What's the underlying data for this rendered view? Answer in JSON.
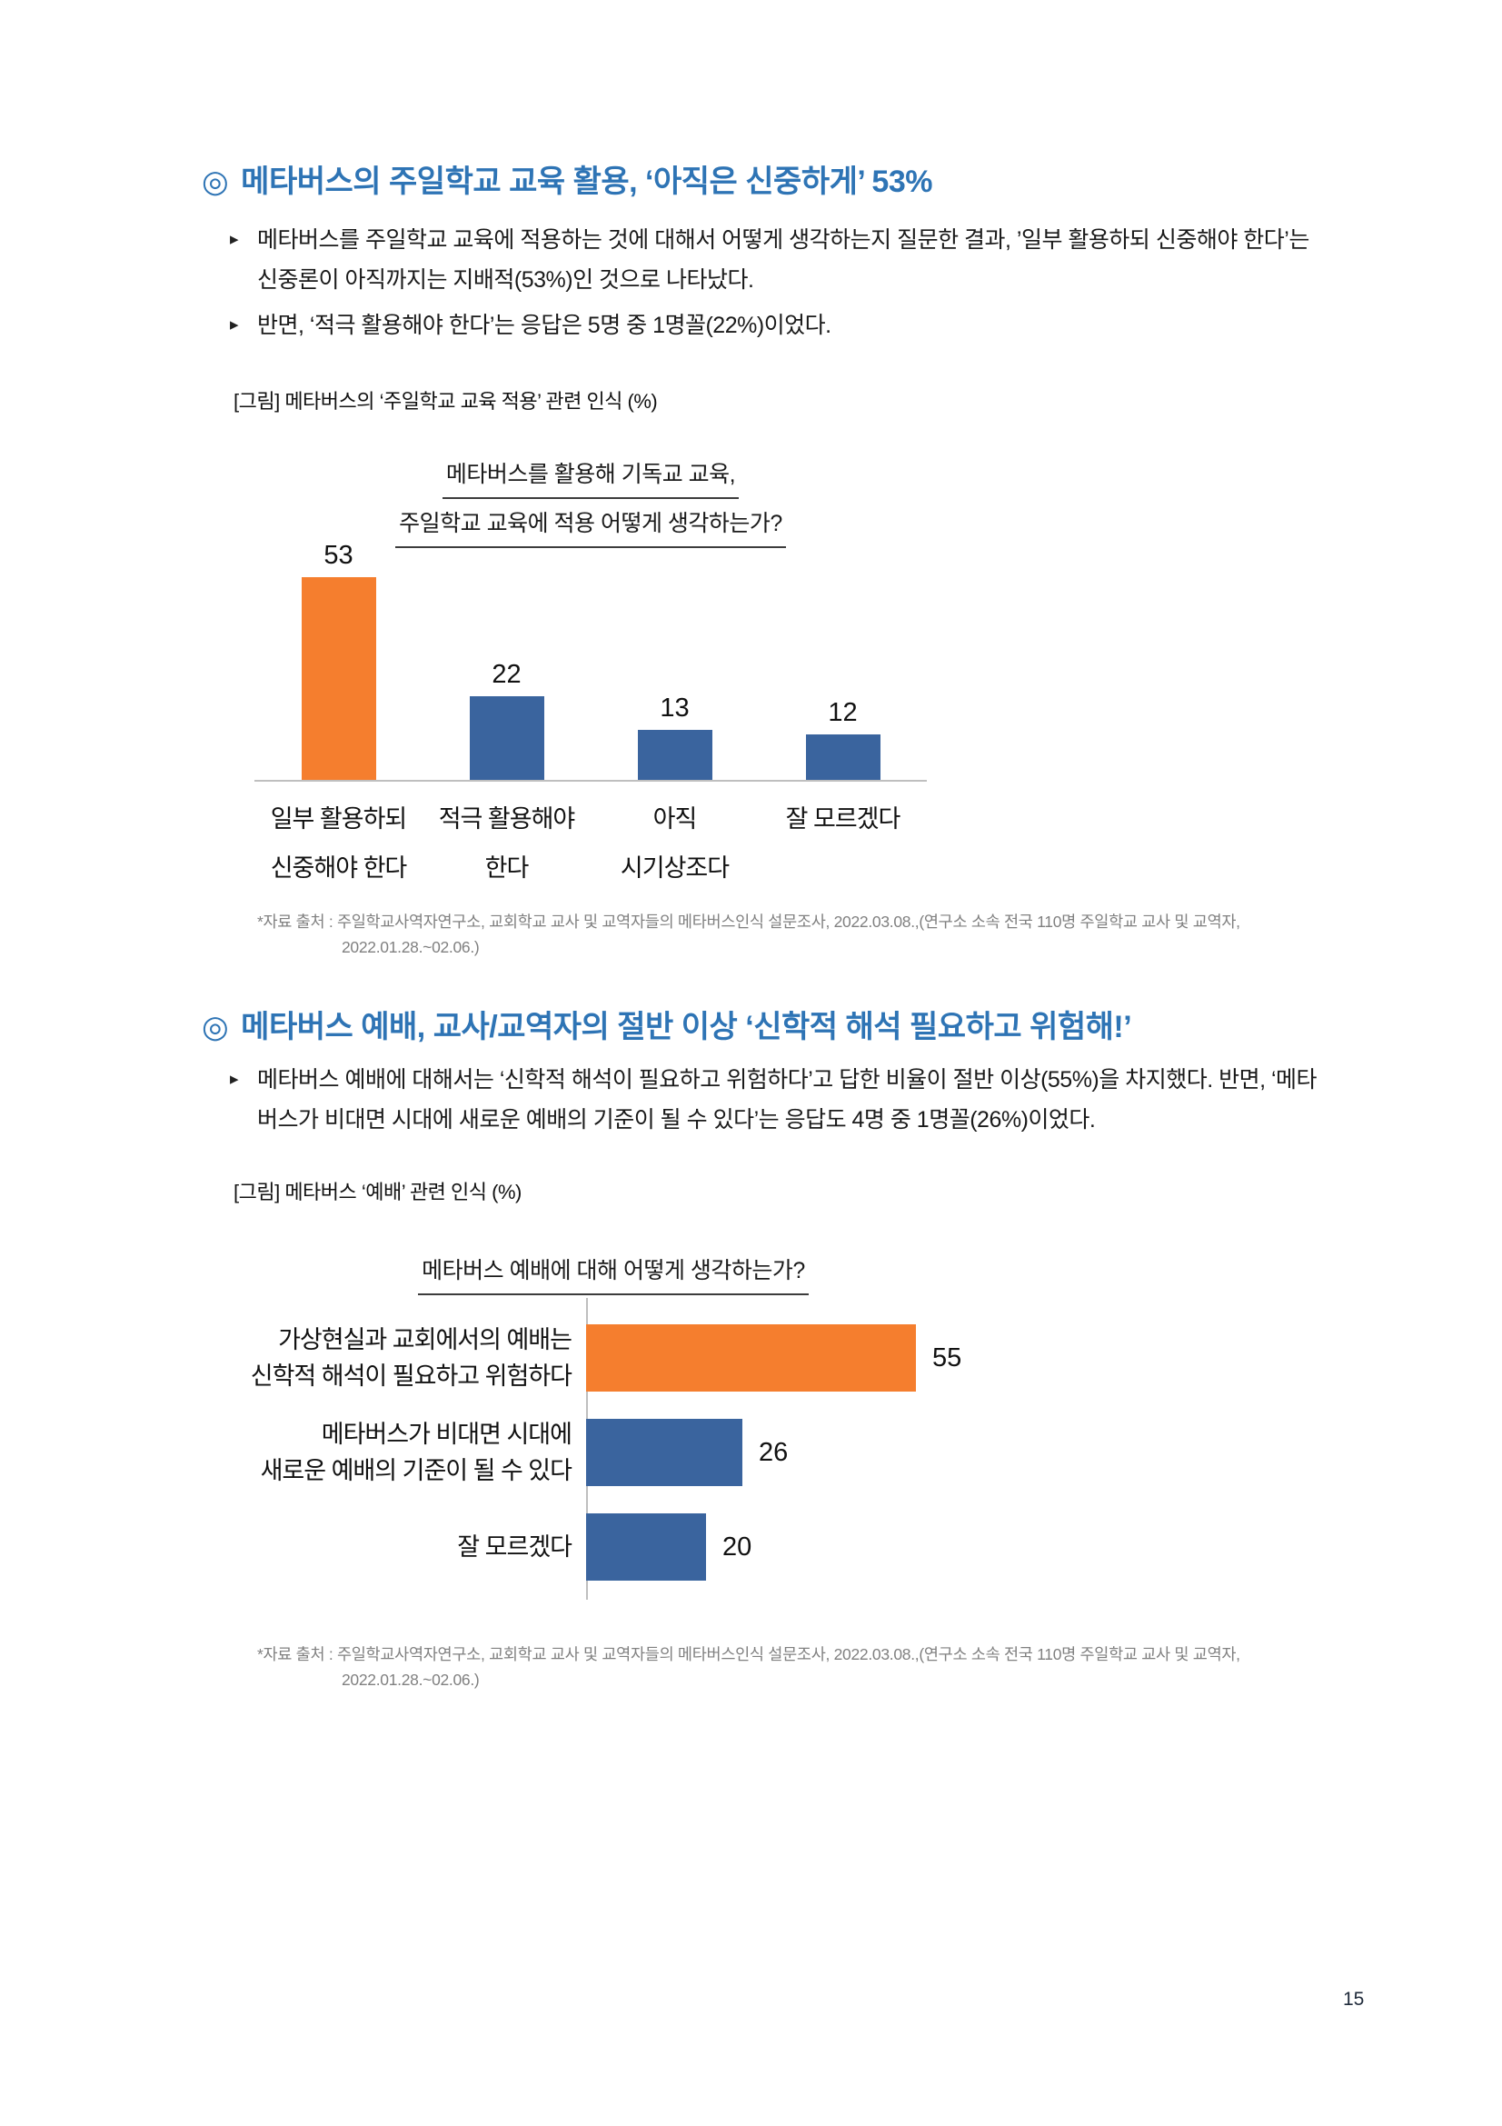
{
  "page": {
    "number": "15"
  },
  "colors": {
    "heading": "#2E74B5",
    "orange": "#F57E2E",
    "blue": "#3A649E",
    "axis": "#BFBFBF",
    "footnote": "#808080"
  },
  "icons": {
    "bullet": "▸"
  },
  "section1": {
    "marker": "◎",
    "title": "메타버스의 주일학교 교육 활용, ‘아직은 신중하게’ 53%",
    "bullets": [
      "메타버스를 주일학교 교육에 적용하는 것에 대해서 어떻게 생각하는지 질문한 결과, ’일부 활용하되 신중해야 한다’는 신중론이 아직까지는 지배적(53%)인 것으로 나타났다.",
      "반면, ‘적극 활용해야 한다’는 응답은 5명 중 1명꼴(22%)이었다."
    ],
    "figure_caption": "[그림] 메타버스의 ‘주일학교 교육 적용’ 관련 인식 (%)"
  },
  "section2": {
    "marker": "◎",
    "title": "메타버스 예배, 교사/교역자의 절반 이상 ‘신학적 해석 필요하고 위험해!’",
    "bullets": [
      "메타버스 예배에 대해서는 ‘신학적 해석이 필요하고 위험하다’고 답한 비율이 절반 이상(55%)을 차지했다. 반면, ‘메타버스가 비대면 시대에 새로운 예배의 기준이 될 수 있다’는 응답도 4명 중 1명꼴(26%)이었다."
    ],
    "figure_caption": "[그림] 메타버스 ‘예배’ 관련 인식 (%)"
  },
  "footnote": {
    "line1": "*자료 출처 : 주일학교사역자연구소, 교회학교 교사 및 교역자들의 메타버스인식 설문조사, 2022.03.08.,(연구소 소속 전국 110명 주일학교 교사 및 교역자,",
    "line2": "2022.01.28.~02.06.)"
  },
  "chart_data": [
    {
      "type": "bar",
      "title_lines": [
        "메타버스를 활용해 기독교 교육,",
        "주일학교 교육에 적용 어떻게 생각하는가?"
      ],
      "categories": [
        [
          "일부 활용하되",
          "신중해야 한다"
        ],
        [
          "적극 활용해야",
          "한다"
        ],
        [
          "아직",
          "시기상조다"
        ],
        [
          "잘 모르겠다"
        ]
      ],
      "values": [
        53,
        22,
        13,
        12
      ],
      "bar_colors": [
        "#F57E2E",
        "#3A649E",
        "#3A649E",
        "#3A649E"
      ],
      "ylim": [
        0,
        60
      ],
      "grid": false,
      "value_labels": true,
      "legend": "none"
    },
    {
      "type": "bar",
      "orientation": "horizontal",
      "title_lines": [
        "메타버스 예배에 대해 어떻게 생각하는가?"
      ],
      "categories": [
        [
          "가상현실과 교회에서의 예배는",
          "신학적 해석이 필요하고 위험하다"
        ],
        [
          "메타버스가 비대면 시대에",
          "새로운 예배의 기준이 될 수 있다"
        ],
        [
          "잘 모르겠다"
        ]
      ],
      "values": [
        55,
        26,
        20
      ],
      "bar_colors": [
        "#F57E2E",
        "#3A649E",
        "#3A649E"
      ],
      "xlim": [
        0,
        60
      ],
      "grid": false,
      "value_labels": true,
      "legend": "none"
    }
  ]
}
